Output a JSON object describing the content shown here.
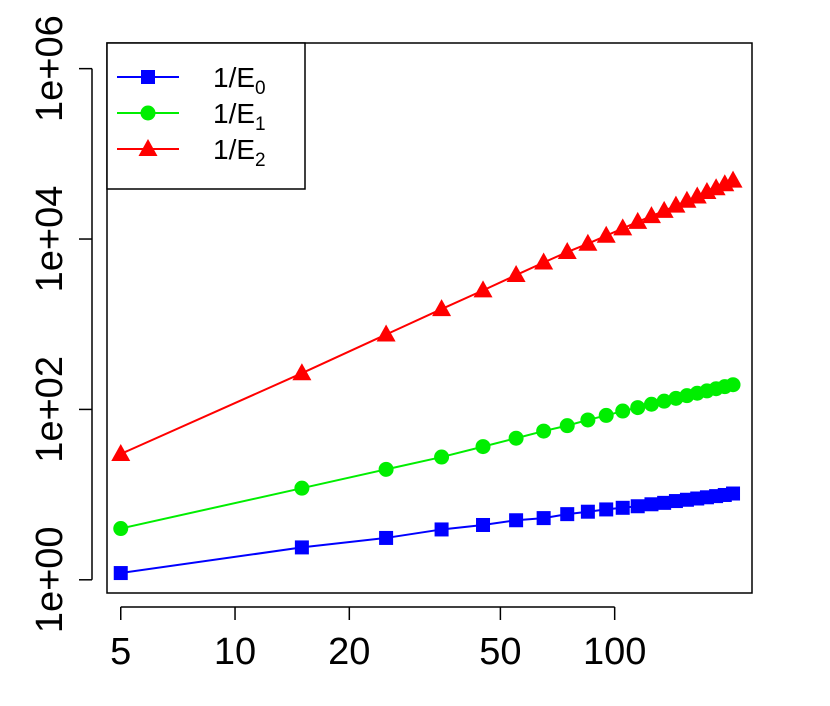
{
  "chart_data": {
    "type": "line",
    "xscale": "log",
    "yscale": "log",
    "xlim": [
      4.6,
      230
    ],
    "ylim": [
      0.7,
      2000000
    ],
    "x_ticks": [
      5,
      10,
      20,
      50,
      100
    ],
    "x_tick_labels": [
      "5",
      "10",
      "20",
      "50",
      "100"
    ],
    "y_ticks": [
      1,
      100,
      10000,
      1000000
    ],
    "y_tick_labels": [
      "1e+00",
      "1e+02",
      "1e+04",
      "1e+06"
    ],
    "legend_position": "top-left",
    "grid": false,
    "series": [
      {
        "name": "1/E",
        "subscript": "0",
        "color": "#0000ff",
        "marker": "square",
        "x": [
          5,
          15,
          25,
          35,
          45,
          55,
          65,
          75,
          85,
          95,
          105,
          115,
          125,
          135,
          145,
          155,
          165,
          175,
          185,
          195,
          205
        ],
        "y": [
          1.2,
          2.4,
          3.1,
          3.9,
          4.4,
          5.0,
          5.3,
          5.9,
          6.3,
          6.7,
          7.0,
          7.3,
          7.7,
          8.0,
          8.4,
          8.7,
          9.0,
          9.3,
          9.6,
          9.9,
          10.3
        ]
      },
      {
        "name": "1/E",
        "subscript": "1",
        "color": "#00ee00",
        "marker": "circle",
        "x": [
          5,
          15,
          25,
          35,
          45,
          55,
          65,
          75,
          85,
          95,
          105,
          115,
          125,
          135,
          145,
          155,
          165,
          175,
          185,
          195,
          205
        ],
        "y": [
          4.0,
          11.9,
          19.8,
          27.6,
          36.6,
          45.9,
          55.7,
          64.5,
          75.2,
          85.0,
          95.7,
          105,
          115,
          125,
          135,
          145,
          155,
          165,
          175,
          185,
          195
        ]
      },
      {
        "name": "1/E",
        "subscript": "2",
        "color": "#ff0000",
        "marker": "triangle",
        "x": [
          5,
          15,
          25,
          35,
          45,
          55,
          65,
          75,
          85,
          95,
          105,
          115,
          125,
          135,
          145,
          155,
          165,
          175,
          185,
          195,
          205
        ],
        "y": [
          30,
          266,
          758,
          1506,
          2495,
          3778,
          5302,
          7041,
          8808,
          10940,
          13340,
          15900,
          18600,
          21400,
          24700,
          28100,
          31600,
          35600,
          39500,
          43900,
          48500
        ]
      }
    ]
  }
}
